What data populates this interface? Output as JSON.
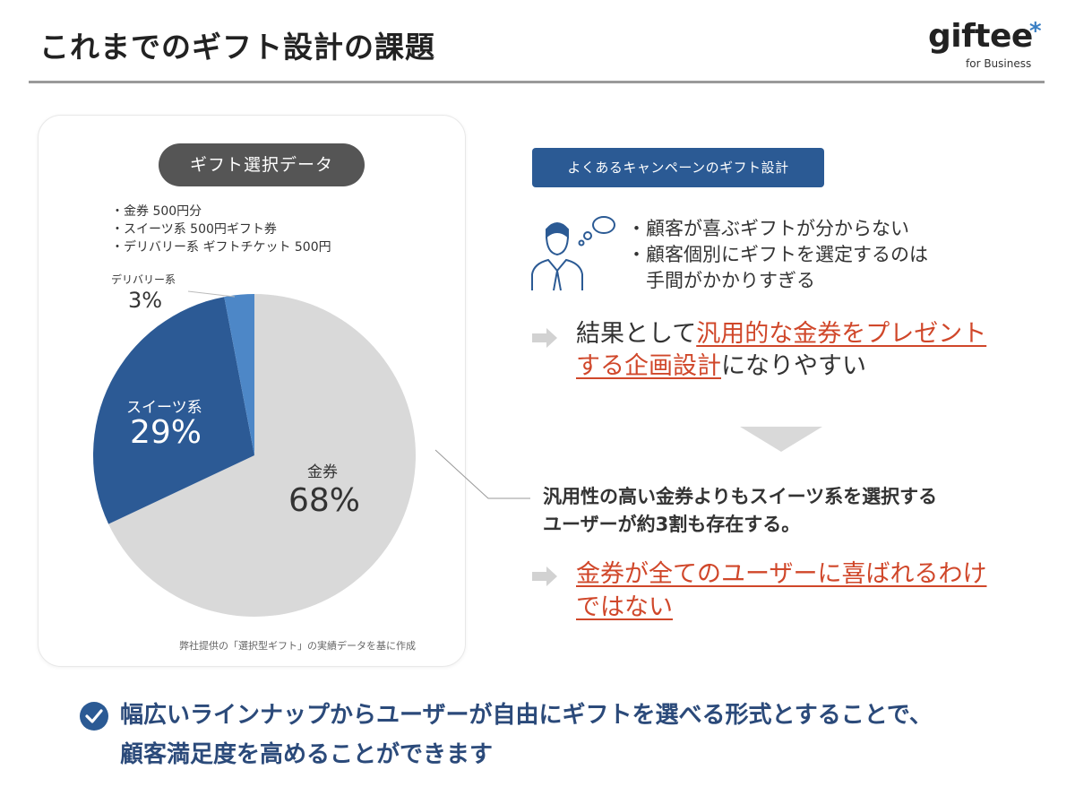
{
  "header": {
    "title": "これまでのギフト設計の課題",
    "logo_word": "giftee",
    "logo_star": "*",
    "logo_sub": "for Business"
  },
  "left_panel": {
    "pill": "ギフト選択データ",
    "options": [
      "・金券 500円分",
      "・スイーツ系 500円ギフト券",
      "・デリバリー系 ギフトチケット 500円"
    ],
    "source_note": "弊社提供の「選択型ギフト」の実績データを基に作成"
  },
  "chart_data": {
    "type": "pie",
    "slices": [
      {
        "name": "金券",
        "label": "68%",
        "value": 68,
        "color": "#d9d9d9"
      },
      {
        "name": "スイーツ系",
        "label": "29%",
        "value": 29,
        "color": "#2c5a95"
      },
      {
        "name": "デリバリー系",
        "label": "3%",
        "value": 3,
        "color": "#4d87c7"
      }
    ]
  },
  "right_panel": {
    "tag": "よくあるキャンペーンのギフト設計",
    "bullet_lines": [
      "・顧客が喜ぶギフトが分からない",
      "・顧客個別にギフトを選定するのは",
      "　手間がかかりすぎる"
    ],
    "result_prefix": "結果として",
    "result_highlight_1": "汎用的な金券をプレゼント",
    "result_highlight_2": "する企画設計",
    "result_suffix": "になりやすい",
    "finding_lines": [
      "汎用性の高い金券よりもスイーツ系を選択する",
      "ユーザーが約3割も存在する。"
    ],
    "conclusion_1": "金券が全てのユーザーに喜ばれるわけ",
    "conclusion_2": "ではない"
  },
  "footer": {
    "line1": "幅広いラインナップからユーザーが自由にギフトを選べる形式とすることで、",
    "line2": "顧客満足度を高めることができます"
  },
  "colors": {
    "accent_blue": "#2b5a94",
    "highlight_red": "#d0472a",
    "footer_text": "#2b4a7a"
  }
}
